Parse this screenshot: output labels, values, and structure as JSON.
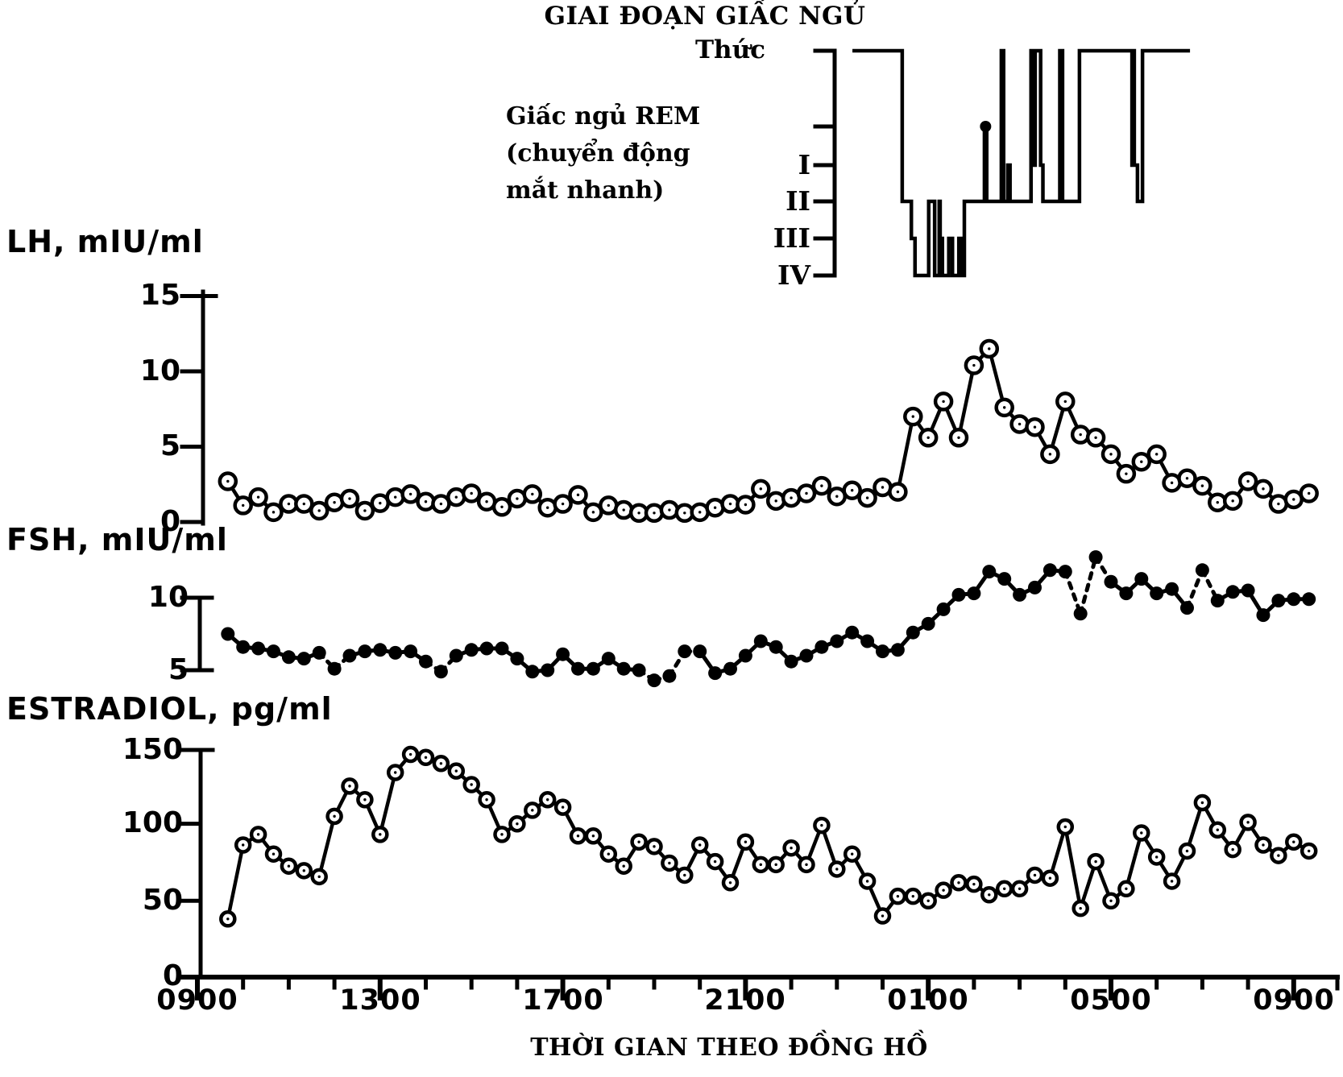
{
  "sleep_panel": {
    "title": "GIAI ĐOẠN GIẤC NGỦ",
    "awake_label": "Thức",
    "rem_label_line1": "Giấc ngủ REM",
    "rem_label_line2": "(chuyển động",
    "rem_label_line3": "mắt nhanh)",
    "stage_labels": [
      "I",
      "II",
      "III",
      "IV"
    ]
  },
  "lh_panel": {
    "ylabel": "LH, mIU/ml",
    "yticks": [
      "15",
      "10",
      "5",
      "0"
    ]
  },
  "fsh_panel": {
    "ylabel": "FSH, mIU/ml",
    "yticks": [
      "10",
      "5"
    ]
  },
  "e2_panel": {
    "ylabel": "ESTRADIOL, pg/ml",
    "yticks": [
      "150",
      "100",
      "50",
      "0"
    ]
  },
  "xaxis": {
    "label": "THỜI GIAN THEO ĐỒNG HỒ",
    "tick_labels": [
      "0900",
      "1300",
      "1700",
      "2100",
      "0100",
      "0500",
      "0900"
    ]
  },
  "colors": {
    "ink": "#000000",
    "paper": "#ffffff"
  },
  "chart_data": {
    "type": "line",
    "title": "GIAI ĐOẠN GIẤC NGỦ",
    "xlabel": "THỜI GIAN THEO ĐỒNG HỒ",
    "x_unit": "clock time (24h, continuing past midnight)",
    "x_major_hours": [
      9,
      13,
      17,
      21,
      25,
      29,
      33
    ],
    "x_major_labels": [
      "0900",
      "1300",
      "1700",
      "2100",
      "0100",
      "0500",
      "0900"
    ],
    "x_minor_every_hour": true,
    "xlim": [
      9,
      33.6
    ],
    "sampling": "one sample every 20 minutes starting 0940",
    "x_start_hour": 9.6667,
    "x_step_hours": 0.33333,
    "series": [
      {
        "name": "LH",
        "units": "mIU/ml",
        "marker": "open-circle",
        "line": "solid",
        "ylim": [
          0,
          15
        ],
        "yticks": [
          0,
          5,
          10,
          15
        ],
        "values": [
          2.7,
          1.1,
          1.65,
          0.65,
          1.2,
          1.2,
          0.75,
          1.3,
          1.55,
          0.75,
          1.25,
          1.65,
          1.85,
          1.35,
          1.2,
          1.65,
          1.9,
          1.35,
          1.0,
          1.55,
          1.85,
          0.95,
          1.2,
          1.8,
          0.65,
          1.1,
          0.8,
          0.6,
          0.6,
          0.8,
          0.6,
          0.65,
          0.95,
          1.2,
          1.15,
          2.2,
          1.4,
          1.6,
          1.9,
          2.4,
          1.7,
          2.1,
          1.6,
          2.3,
          2.0,
          7.0,
          5.6,
          8.0,
          5.6,
          10.4,
          11.5,
          7.6,
          6.5,
          6.3,
          4.5,
          8.0,
          5.8,
          5.6,
          4.5,
          3.2,
          4.0,
          4.5,
          2.6,
          2.9,
          2.4,
          1.3,
          1.4,
          2.7,
          2.2,
          1.2,
          1.5,
          1.9
        ]
      },
      {
        "name": "FSH",
        "units": "mIU/ml",
        "marker": "filled-circle",
        "line": "solid with dashed gaps",
        "ylim_shown": [
          5,
          10
        ],
        "yticks": [
          5,
          10
        ],
        "values": [
          7.5,
          6.6,
          6.5,
          6.3,
          5.9,
          5.8,
          6.2,
          5.1,
          6.0,
          6.3,
          6.4,
          6.2,
          6.3,
          5.6,
          4.9,
          6.0,
          6.4,
          6.5,
          6.5,
          5.8,
          4.9,
          5.0,
          6.1,
          5.1,
          5.1,
          5.8,
          5.1,
          5.0,
          4.3,
          4.6,
          6.3,
          6.3,
          4.8,
          5.1,
          6.0,
          7.0,
          6.6,
          5.6,
          6.0,
          6.6,
          7.0,
          7.6,
          7.0,
          6.3,
          6.4,
          7.6,
          8.2,
          9.2,
          10.2,
          10.3,
          11.8,
          11.3,
          10.2,
          10.7,
          11.9,
          11.8,
          8.9,
          12.8,
          11.1,
          10.3,
          11.3,
          10.3,
          10.6,
          9.3,
          11.9,
          9.8,
          10.4,
          10.5,
          8.8,
          9.8,
          9.9,
          9.9
        ],
        "dashed_links": [
          6,
          7,
          13,
          14,
          27,
          28,
          29,
          30,
          55,
          56,
          57,
          63,
          64
        ]
      },
      {
        "name": "ESTRADIOL",
        "units": "pg/ml",
        "marker": "open-circle",
        "line": "solid",
        "ylim": [
          0,
          150
        ],
        "yticks": [
          0,
          50,
          100,
          150
        ],
        "values": [
          38,
          87,
          94,
          81,
          73,
          70,
          66,
          106,
          126,
          117,
          94,
          135,
          147,
          145,
          141,
          136,
          127,
          117,
          94,
          101,
          110,
          117,
          112,
          93,
          93,
          81,
          73,
          89,
          86,
          75,
          67,
          87,
          76,
          62,
          89,
          74,
          74,
          85,
          74,
          100,
          71,
          81,
          63,
          40,
          53,
          53,
          50,
          57,
          62,
          61,
          54,
          58,
          58,
          67,
          65,
          99,
          45,
          76,
          50,
          58,
          95,
          79,
          63,
          83,
          115,
          97,
          84,
          102,
          87,
          80,
          89,
          83
        ]
      }
    ],
    "hypnogram": {
      "stages_top_to_bottom": [
        "Thức",
        "REM",
        "I",
        "II",
        "III",
        "IV"
      ],
      "note": "sleep-stage step trace; Thức = awake, REM spike marked with a dot",
      "segments": [
        [
          23.34,
          24.43,
          "Thức"
        ],
        [
          24.43,
          24.63,
          "II"
        ],
        [
          24.63,
          24.71,
          "III"
        ],
        [
          24.71,
          25.01,
          "IV"
        ],
        [
          25.01,
          25.14,
          "II"
        ],
        [
          25.14,
          25.24,
          "IV"
        ],
        [
          25.24,
          25.26,
          "II"
        ],
        [
          25.26,
          25.29,
          "IV"
        ],
        [
          25.29,
          25.31,
          "III"
        ],
        [
          25.31,
          25.45,
          "IV"
        ],
        [
          25.45,
          25.53,
          "III"
        ],
        [
          25.53,
          25.67,
          "IV"
        ],
        [
          25.67,
          25.72,
          "III"
        ],
        [
          25.72,
          25.79,
          "IV"
        ],
        [
          25.79,
          26.23,
          "II"
        ],
        [
          26.23,
          26.28,
          "REM"
        ],
        [
          26.28,
          26.6,
          "II"
        ],
        [
          26.6,
          26.65,
          "Thức"
        ],
        [
          26.65,
          26.74,
          "II"
        ],
        [
          26.74,
          26.79,
          "I"
        ],
        [
          26.79,
          27.25,
          "II"
        ],
        [
          27.25,
          27.32,
          "Thức"
        ],
        [
          27.32,
          27.34,
          "I"
        ],
        [
          27.34,
          27.46,
          "Thức"
        ],
        [
          27.46,
          27.51,
          "I"
        ],
        [
          27.51,
          27.88,
          "II"
        ],
        [
          27.88,
          27.94,
          "Thức"
        ],
        [
          27.94,
          28.31,
          "II"
        ],
        [
          28.31,
          29.46,
          "Thức"
        ],
        [
          29.46,
          29.49,
          "I"
        ],
        [
          29.49,
          29.51,
          "Thức"
        ],
        [
          29.51,
          29.58,
          "I"
        ],
        [
          29.58,
          29.69,
          "II"
        ],
        [
          29.69,
          30.73,
          "Thức"
        ]
      ],
      "rem_dot_hour": 26.255
    }
  }
}
